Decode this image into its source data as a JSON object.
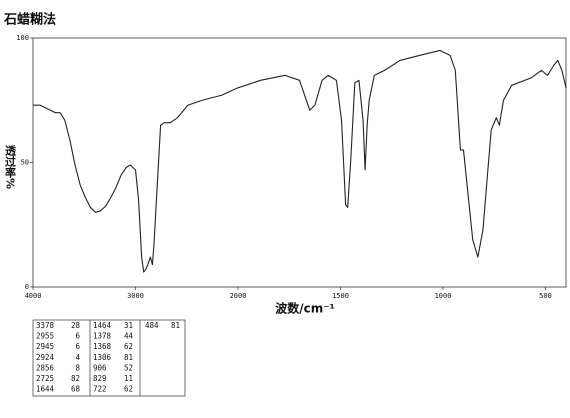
{
  "chart_data": {
    "type": "line",
    "title": "石蜡糊法",
    "y_label": "透过率%",
    "x_label": "波数/cm⁻¹",
    "x": [
      4000,
      3930,
      3880,
      3780,
      3735,
      3690,
      3640,
      3590,
      3540,
      3490,
      3440,
      3390,
      3345,
      3290,
      3240,
      3190,
      3140,
      3090,
      3050,
      3000,
      2970,
      2940,
      2920,
      2900,
      2880,
      2855,
      2835,
      2820,
      2785,
      2755,
      2720,
      2660,
      2590,
      2490,
      2350,
      2160,
      2000,
      1890,
      1770,
      1700,
      1650,
      1625,
      1590,
      1560,
      1520,
      1495,
      1475,
      1465,
      1450,
      1430,
      1410,
      1390,
      1380,
      1370,
      1360,
      1335,
      1285,
      1210,
      1115,
      1015,
      965,
      940,
      915,
      900,
      875,
      855,
      830,
      805,
      765,
      740,
      725,
      705,
      665,
      570,
      520,
      490,
      460,
      440,
      420,
      400
    ],
    "values": [
      73,
      73,
      72,
      70,
      70,
      67,
      59,
      49,
      41,
      36,
      32,
      30,
      30.5,
      32.5,
      36,
      40,
      45,
      48,
      49,
      47,
      35,
      12,
      6,
      7,
      9,
      12,
      9,
      17,
      43,
      65,
      66,
      66,
      68,
      73,
      75,
      77,
      80,
      83,
      85,
      83,
      71,
      73,
      83,
      85,
      83,
      67,
      33,
      32,
      51,
      82,
      83,
      67,
      47,
      65,
      75,
      85,
      87,
      91,
      93,
      95,
      93,
      87,
      55,
      55,
      35,
      19,
      12,
      23,
      63,
      68,
      65,
      75,
      81,
      84,
      87,
      85,
      89,
      91,
      87,
      80
    ],
    "color": "#222222",
    "xlim": [
      4000,
      400
    ],
    "xticks": [
      4000,
      3000,
      2000,
      1500,
      1000,
      500
    ],
    "ylim": [
      0,
      100
    ],
    "yticks": [
      0,
      50,
      100
    ],
    "peak_table": [
      [
        [
          3378,
          28
        ],
        [
          2955,
          6
        ],
        [
          2945,
          6
        ],
        [
          2924,
          4
        ],
        [
          2856,
          8
        ],
        [
          2725,
          82
        ],
        [
          1644,
          68
        ]
      ],
      [
        [
          1464,
          31
        ],
        [
          1378,
          44
        ],
        [
          1368,
          62
        ],
        [
          1306,
          81
        ],
        [
          906,
          52
        ],
        [
          829,
          11
        ],
        [
          722,
          62
        ]
      ],
      [
        [
          484,
          81
        ]
      ]
    ]
  }
}
